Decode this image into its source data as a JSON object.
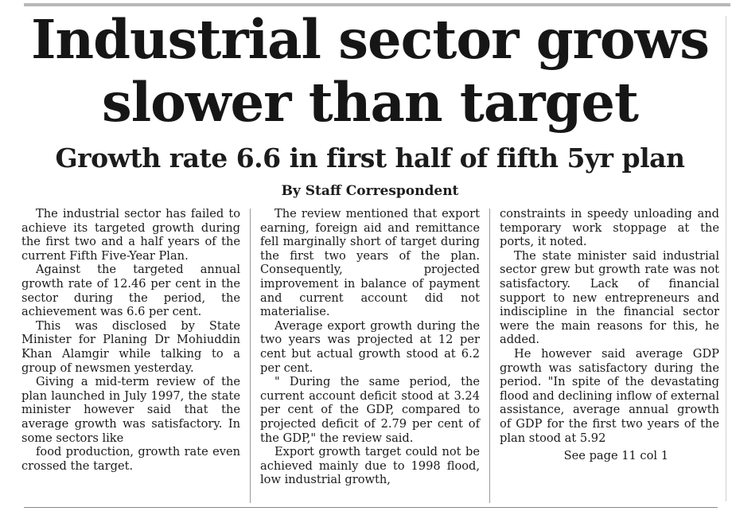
{
  "article": {
    "headline_line1": "Industrial sector grows",
    "headline_line2": "slower than target",
    "subheadline": "Growth rate 6.6 in first half of fifth 5yr plan",
    "byline": "By Staff Correspondent",
    "column1": [
      "The industrial sector has failed to achieve its targeted growth during the first two and a half years of the current Fifth Five-Year Plan.",
      "Against the targeted annual growth rate of 12.46 per cent in the sector during the period, the achievement was 6.6 per cent.",
      "This was disclosed by State Minister for Planing Dr Mohiuddin Khan Alamgir while talking to a group of newsmen yesterday.",
      "Giving a mid-term review of the plan launched in July 1997, the state minister however said that the average growth was satisfactory. In some sectors like",
      "food production, growth rate even crossed the target."
    ],
    "column2": [
      "The review mentioned that export earning, foreign aid and remittance fell marginally short of target during the first two years of the plan. Consequently, projected improvement in balance of payment and current account did not materialise.",
      "Average export growth during the two years was projected at 12 per cent but actual growth stood at 6.2 per cent.",
      "\" During the same period, the current account deficit stood at 3.24 per cent of the GDP, compared to projected deficit of 2.79 per cent of the GDP,\" the review said.",
      "Export growth target could not be achieved mainly due to 1998 flood, low industrial growth,"
    ],
    "column3": [
      "constraints in speedy unloading and temporary work stoppage at the ports, it noted.",
      "The state minister said industrial sector grew but growth rate was not satisfactory. Lack of financial support to new entrepreneurs and indiscipline in the financial sector were the main reasons for this, he added.",
      "He however said average GDP growth was satisfactory during the period. \"In spite of the devastating flood and declining inflow of external assistance, average annual growth of GDP for the first two years of the plan stood at 5.92"
    ],
    "continuation": "See page 11 col 1"
  }
}
